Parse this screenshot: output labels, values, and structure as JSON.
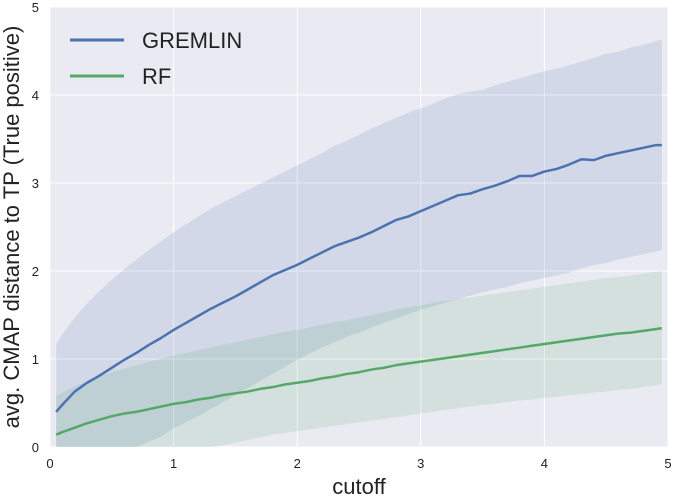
{
  "chart_data": {
    "type": "line",
    "title": "",
    "xlabel": "cutoff",
    "ylabel": "avg. CMAP distance to TP (True positive)",
    "xlim": [
      0,
      5
    ],
    "ylim": [
      0,
      5
    ],
    "xticks": [
      0,
      1,
      2,
      3,
      4,
      5
    ],
    "yticks": [
      0,
      1,
      2,
      3,
      4,
      5
    ],
    "grid": true,
    "legend_position": "top-left",
    "series": [
      {
        "name": "GREMLIN",
        "color": "#4c72b0",
        "x": [
          0.05,
          0.1,
          0.2,
          0.3,
          0.4,
          0.5,
          0.6,
          0.7,
          0.8,
          0.9,
          1.0,
          1.1,
          1.2,
          1.3,
          1.4,
          1.5,
          1.6,
          1.7,
          1.8,
          1.9,
          2.0,
          2.1,
          2.2,
          2.3,
          2.4,
          2.5,
          2.6,
          2.7,
          2.8,
          2.9,
          3.0,
          3.1,
          3.2,
          3.3,
          3.4,
          3.5,
          3.6,
          3.7,
          3.8,
          3.9,
          4.0,
          4.1,
          4.2,
          4.3,
          4.4,
          4.5,
          4.6,
          4.7,
          4.8,
          4.9,
          4.95
        ],
        "y": [
          0.4,
          0.48,
          0.63,
          0.73,
          0.81,
          0.9,
          0.99,
          1.07,
          1.16,
          1.24,
          1.33,
          1.41,
          1.49,
          1.57,
          1.64,
          1.71,
          1.79,
          1.87,
          1.95,
          2.01,
          2.07,
          2.14,
          2.21,
          2.28,
          2.33,
          2.38,
          2.44,
          2.51,
          2.58,
          2.62,
          2.68,
          2.74,
          2.8,
          2.86,
          2.88,
          2.93,
          2.97,
          3.02,
          3.08,
          3.08,
          3.13,
          3.16,
          3.21,
          3.27,
          3.26,
          3.31,
          3.34,
          3.37,
          3.4,
          3.43,
          3.43
        ],
        "lower": [
          0.0,
          0.0,
          0.0,
          0.0,
          0.0,
          0.0,
          0.0,
          0.0,
          0.06,
          0.12,
          0.21,
          0.28,
          0.35,
          0.43,
          0.51,
          0.59,
          0.67,
          0.75,
          0.83,
          0.91,
          0.99,
          1.06,
          1.13,
          1.19,
          1.25,
          1.3,
          1.36,
          1.41,
          1.46,
          1.51,
          1.56,
          1.6,
          1.64,
          1.68,
          1.72,
          1.76,
          1.79,
          1.82,
          1.86,
          1.89,
          1.92,
          1.95,
          1.98,
          2.03,
          2.07,
          2.09,
          2.13,
          2.16,
          2.19,
          2.22,
          2.24
        ],
        "upper": [
          1.17,
          1.28,
          1.47,
          1.63,
          1.77,
          1.9,
          2.02,
          2.13,
          2.24,
          2.34,
          2.44,
          2.53,
          2.62,
          2.71,
          2.78,
          2.85,
          2.92,
          2.99,
          3.06,
          3.13,
          3.2,
          3.27,
          3.34,
          3.42,
          3.48,
          3.55,
          3.62,
          3.68,
          3.74,
          3.8,
          3.85,
          3.9,
          3.96,
          4.01,
          4.04,
          4.06,
          4.11,
          4.15,
          4.19,
          4.23,
          4.27,
          4.3,
          4.34,
          4.38,
          4.42,
          4.47,
          4.49,
          4.54,
          4.57,
          4.61,
          4.63
        ]
      },
      {
        "name": "RF",
        "color": "#55a868",
        "x": [
          0.05,
          0.1,
          0.2,
          0.3,
          0.4,
          0.5,
          0.6,
          0.7,
          0.8,
          0.9,
          1.0,
          1.1,
          1.2,
          1.3,
          1.4,
          1.5,
          1.6,
          1.7,
          1.8,
          1.9,
          2.0,
          2.1,
          2.2,
          2.3,
          2.4,
          2.5,
          2.6,
          2.7,
          2.8,
          2.9,
          3.0,
          3.1,
          3.2,
          3.3,
          3.4,
          3.5,
          3.6,
          3.7,
          3.8,
          3.9,
          4.0,
          4.1,
          4.2,
          4.3,
          4.4,
          4.5,
          4.6,
          4.7,
          4.8,
          4.9,
          4.95
        ],
        "y": [
          0.14,
          0.17,
          0.22,
          0.27,
          0.31,
          0.35,
          0.38,
          0.4,
          0.43,
          0.46,
          0.49,
          0.51,
          0.54,
          0.56,
          0.59,
          0.61,
          0.63,
          0.66,
          0.68,
          0.71,
          0.73,
          0.75,
          0.78,
          0.8,
          0.83,
          0.85,
          0.88,
          0.9,
          0.93,
          0.95,
          0.97,
          0.99,
          1.01,
          1.03,
          1.05,
          1.07,
          1.09,
          1.11,
          1.13,
          1.15,
          1.17,
          1.19,
          1.21,
          1.23,
          1.25,
          1.27,
          1.29,
          1.3,
          1.32,
          1.34,
          1.35
        ],
        "lower": [
          0.0,
          0.0,
          0.0,
          0.0,
          0.0,
          0.0,
          0.0,
          0.0,
          0.0,
          0.0,
          0.0,
          0.0,
          0.0,
          0.0,
          0.02,
          0.05,
          0.08,
          0.11,
          0.14,
          0.16,
          0.18,
          0.2,
          0.22,
          0.24,
          0.26,
          0.28,
          0.3,
          0.32,
          0.34,
          0.36,
          0.38,
          0.4,
          0.42,
          0.44,
          0.46,
          0.48,
          0.49,
          0.51,
          0.53,
          0.54,
          0.56,
          0.57,
          0.59,
          0.6,
          0.62,
          0.63,
          0.65,
          0.66,
          0.68,
          0.7,
          0.71
        ],
        "upper": [
          0.58,
          0.62,
          0.69,
          0.75,
          0.8,
          0.85,
          0.89,
          0.93,
          0.97,
          1.0,
          1.04,
          1.07,
          1.1,
          1.13,
          1.16,
          1.19,
          1.22,
          1.25,
          1.28,
          1.31,
          1.33,
          1.36,
          1.39,
          1.42,
          1.44,
          1.47,
          1.5,
          1.53,
          1.56,
          1.59,
          1.61,
          1.64,
          1.66,
          1.68,
          1.7,
          1.72,
          1.74,
          1.76,
          1.78,
          1.8,
          1.82,
          1.84,
          1.86,
          1.88,
          1.9,
          1.92,
          1.93,
          1.95,
          1.97,
          1.99,
          2.0
        ]
      }
    ]
  }
}
